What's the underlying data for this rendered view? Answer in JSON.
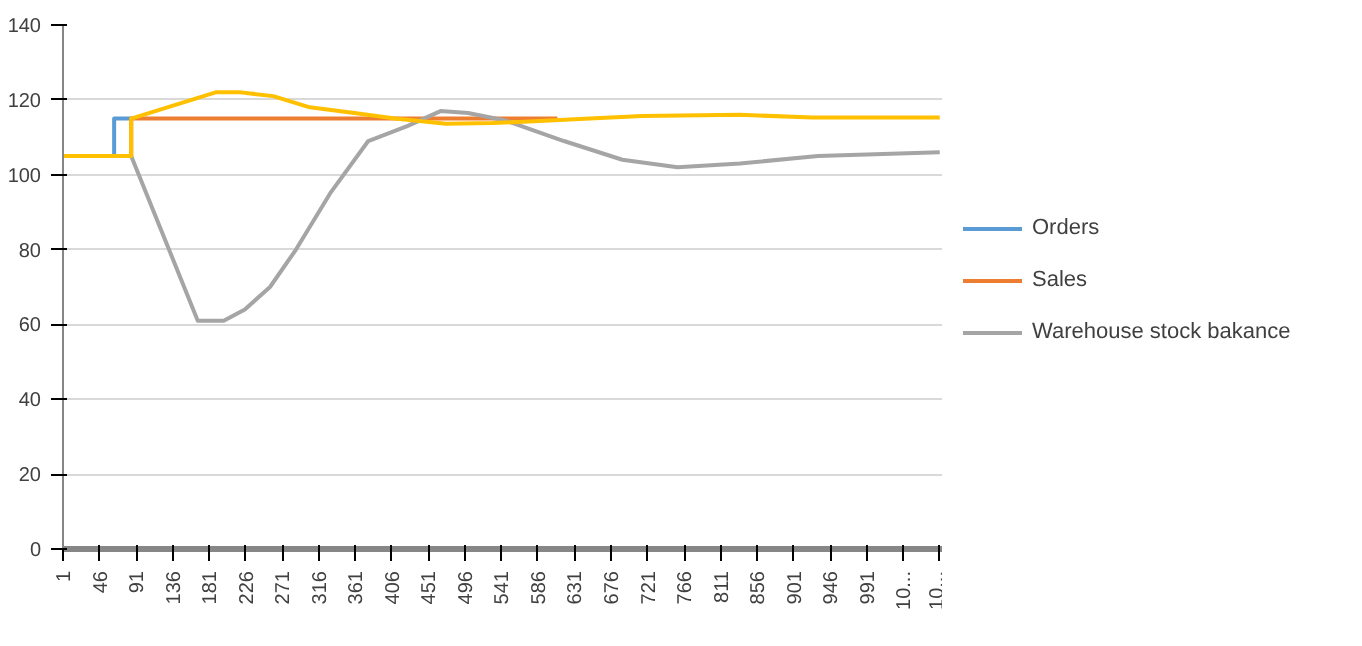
{
  "chart_data": {
    "type": "line",
    "xlim": [
      1,
      1085
    ],
    "ylim": [
      0,
      140
    ],
    "xticks": [
      1,
      46,
      91,
      136,
      181,
      226,
      271,
      316,
      361,
      406,
      451,
      496,
      541,
      586,
      631,
      676,
      721,
      766,
      811,
      856,
      901,
      946,
      991,
      {
        "value": 1036,
        "label": "10..."
      },
      {
        "value": 1081,
        "label": "10..."
      }
    ],
    "yticks": [
      0,
      20,
      40,
      60,
      80,
      100,
      120,
      140
    ],
    "grid": "y",
    "legend": "right",
    "series": [
      {
        "name": "Orders",
        "color": "#5b9bd5",
        "x": [
          1,
          64,
          64,
          85
        ],
        "values": [
          105,
          105,
          115,
          115
        ]
      },
      {
        "name": "Sales",
        "color": "#ed7d31",
        "x": [
          1,
          85,
          85,
          610
        ],
        "values": [
          105,
          105,
          115,
          115
        ]
      },
      {
        "name": "Warehouse stock bakance",
        "color": "#a5a5a5",
        "x": [
          1,
          85,
          167,
          199,
          225,
          256,
          288,
          330,
          377,
          425,
          466,
          500,
          546,
          618,
          690,
          758,
          835,
          931,
          1081
        ],
        "values": [
          105,
          105,
          61,
          61,
          64,
          70,
          80,
          95,
          109,
          113,
          117,
          116.5,
          114.5,
          109,
          104,
          102,
          103,
          105,
          106
        ]
      },
      {
        "color": "#ffc000",
        "x": [
          1,
          85,
          85,
          189,
          220,
          260,
          305,
          360,
          410,
          473,
          530,
          594,
          650,
          714,
          835,
          924,
          1081
        ],
        "values": [
          105,
          105,
          115,
          122,
          122,
          121,
          118,
          116.5,
          115,
          113.6,
          113.8,
          114.4,
          115,
          115.7,
          116,
          115.3,
          115.3
        ]
      }
    ]
  }
}
